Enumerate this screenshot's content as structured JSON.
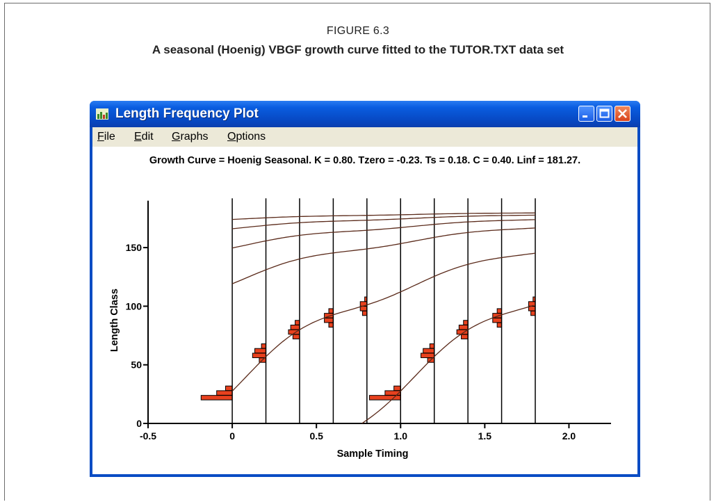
{
  "figure": {
    "label": "FIGURE 6.3",
    "title": "A seasonal (Hoenig) VBGF growth curve fitted to the TUTOR.TXT data set"
  },
  "window": {
    "title": "Length Frequency Plot",
    "icon": "chart-icon",
    "controls": [
      "minimize-icon",
      "maximize-icon",
      "close-icon"
    ]
  },
  "menu": [
    {
      "label": "File",
      "accel": "F",
      "rest": "ile"
    },
    {
      "label": "Edit",
      "accel": "E",
      "rest": "dit"
    },
    {
      "label": "Graphs",
      "accel": "G",
      "rest": "raphs"
    },
    {
      "label": "Options",
      "accel": "O",
      "rest": "ptions"
    }
  ],
  "plot": {
    "header": "Growth Curve = Hoenig Seasonal. K = 0.80. Tzero = -0.23. Ts = 0.18. C = 0.40. Linf = 181.27.",
    "xlabel": "Sample Timing",
    "ylabel": "Length Class",
    "x_ticks": [
      "-0.5",
      "0",
      "0.5",
      "1.0",
      "1.5",
      "2.0"
    ],
    "x_tick_values": [
      -0.5,
      0,
      0.5,
      1.0,
      1.5,
      2.0
    ],
    "y_ticks": [
      "0",
      "50",
      "100",
      "150"
    ],
    "y_tick_values": [
      0,
      50,
      100,
      150
    ],
    "sample_times": [
      0,
      0.2,
      0.4,
      0.6,
      0.8,
      1.0,
      1.2,
      1.4,
      1.6,
      1.8
    ],
    "growth_params": {
      "K": 0.8,
      "Tzero": -0.23,
      "Ts": 0.18,
      "C": 0.4,
      "Linf": 181.27
    },
    "cohort_start_times": [
      -0.23,
      0.77
    ],
    "upper_curve_start_lengths": [
      124,
      150,
      166,
      174
    ],
    "histograms": [
      {
        "t": 0,
        "bins": [
          [
            22,
            14
          ],
          [
            26,
            7
          ],
          [
            30,
            3
          ]
        ]
      },
      {
        "t": 0.2,
        "bins": [
          [
            54,
            3
          ],
          [
            58,
            6
          ],
          [
            62,
            5
          ],
          [
            66,
            2
          ]
        ]
      },
      {
        "t": 0.4,
        "bins": [
          [
            74,
            3
          ],
          [
            78,
            5
          ],
          [
            82,
            4
          ],
          [
            86,
            2
          ]
        ]
      },
      {
        "t": 0.6,
        "bins": [
          [
            84,
            2
          ],
          [
            88,
            4
          ],
          [
            92,
            4
          ],
          [
            96,
            2
          ]
        ]
      },
      {
        "t": 0.8,
        "bins": [
          [
            94,
            2
          ],
          [
            98,
            3
          ],
          [
            102,
            3
          ],
          [
            106,
            1
          ]
        ]
      },
      {
        "t": 1.0,
        "bins": [
          [
            22,
            14
          ],
          [
            26,
            7
          ],
          [
            30,
            3
          ]
        ]
      },
      {
        "t": 1.2,
        "bins": [
          [
            54,
            3
          ],
          [
            58,
            6
          ],
          [
            62,
            5
          ],
          [
            66,
            2
          ]
        ]
      },
      {
        "t": 1.4,
        "bins": [
          [
            74,
            3
          ],
          [
            78,
            5
          ],
          [
            82,
            4
          ],
          [
            86,
            2
          ]
        ]
      },
      {
        "t": 1.6,
        "bins": [
          [
            84,
            2
          ],
          [
            88,
            4
          ],
          [
            92,
            4
          ],
          [
            96,
            2
          ]
        ]
      },
      {
        "t": 1.8,
        "bins": [
          [
            94,
            2
          ],
          [
            98,
            3
          ],
          [
            102,
            3
          ],
          [
            106,
            1
          ]
        ]
      }
    ],
    "colors": {
      "bar": "#e8411e",
      "curve": "#5a2a1a",
      "axis": "#000000"
    }
  }
}
